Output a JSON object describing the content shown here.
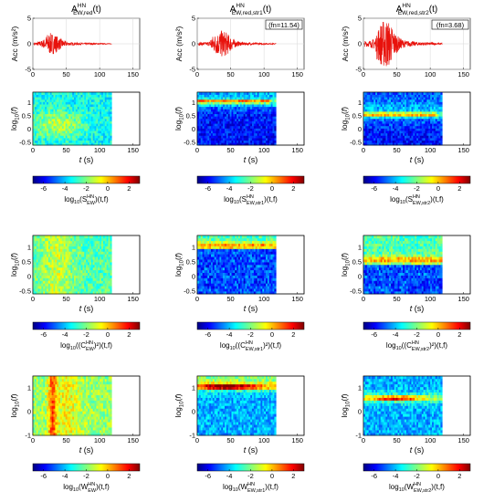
{
  "figure": {
    "time_axis_label": "t (s)",
    "acc_axis_label": "Acc (m/s²)",
    "freq_axis_label": "log10(f)"
  },
  "columns": [
    {
      "name": "EW,red",
      "acc_title": {
        "base": "A",
        "sup": "HN",
        "sub": "EW,red",
        "tail": "(t)"
      },
      "freq_badge": "",
      "spec_label": {
        "pre": "log",
        "pre_sub": "10",
        "open": "(S",
        "sup": "HN",
        "sub": "EW",
        "post": ")(t,f)"
      },
      "coh_label": {
        "pre": "log",
        "pre_sub": "10",
        "open": "((C",
        "sup": "HN",
        "sub": "EW",
        "post": ")²)(t,f)"
      },
      "wig_label": {
        "pre": "log",
        "pre_sub": "10",
        "open": "(W",
        "sup": "HN",
        "sub": "EW",
        "post": ")(t,f)"
      }
    },
    {
      "name": "EW,red,str1",
      "acc_title": {
        "base": "A",
        "sup": "HN",
        "sub": "EW,red,str1",
        "tail": "(t)"
      },
      "freq_badge": "(fn=11.54)",
      "spec_label": {
        "pre": "log",
        "pre_sub": "10",
        "open": "(S",
        "sup": "HN",
        "sub": "EW,str1",
        "post": ")(t,f)"
      },
      "coh_label": {
        "pre": "log",
        "pre_sub": "10",
        "open": "((C",
        "sup": "HN",
        "sub": "EW,str1",
        "post": ")²)(t,f)"
      },
      "wig_label": {
        "pre": "log",
        "pre_sub": "10",
        "open": "(W",
        "sup": "HN",
        "sub": "EW,str1",
        "post": ")(t,f)"
      }
    },
    {
      "name": "EW,red,str2",
      "acc_title": {
        "base": "A",
        "sup": "HN",
        "sub": "EW,red,str2",
        "tail": "(t)"
      },
      "freq_badge": "(fn=3.68)",
      "spec_label": {
        "pre": "log",
        "pre_sub": "10",
        "open": "(S",
        "sup": "HN",
        "sub": "EW,str2",
        "post": ")(t,f)"
      },
      "coh_label": {
        "pre": "log",
        "pre_sub": "10",
        "open": "((C",
        "sup": "HN",
        "sub": "EW,str2",
        "post": ")²)(t,f)"
      },
      "wig_label": {
        "pre": "log",
        "pre_sub": "10",
        "open": "(W",
        "sup": "HN",
        "sub": "EW,str2",
        "post": ")(t,f)"
      }
    }
  ],
  "chart_data": [
    {
      "type": "line",
      "description_role": "acceleration time histories",
      "xlim": [
        0,
        160
      ],
      "ylim": [
        -5,
        5
      ],
      "xticks": [
        0,
        50,
        100,
        150
      ],
      "yticks": [
        -5,
        0,
        5
      ],
      "grid": true,
      "color": "#e8120c",
      "signal_end": 118,
      "series": [
        {
          "name": "EW,red",
          "peak": 1.5,
          "peak_time": 28
        },
        {
          "name": "EW,red,str1",
          "peak": 2.0,
          "peak_time": 38
        },
        {
          "name": "EW,red,str2",
          "peak": 3.6,
          "peak_time": 34
        }
      ]
    },
    {
      "type": "heatmap",
      "description_role": "time-frequency panels (spectrogram, coherence, Wigner)",
      "xlim": [
        0,
        160
      ],
      "xticks": [
        0,
        50,
        100,
        150
      ],
      "signal_end": 118,
      "rows": [
        {
          "kind": "spectrogram",
          "ylim": [
            -0.6,
            1.4
          ],
          "yticks": [
            1,
            0.5,
            0,
            -0.5
          ]
        },
        {
          "kind": "coherence",
          "ylim": [
            -0.6,
            1.4
          ],
          "yticks": [
            1,
            0.5,
            0,
            -0.5
          ]
        },
        {
          "kind": "wigner",
          "ylim": [
            -1,
            1.5
          ],
          "yticks": [
            1,
            0,
            -1
          ]
        }
      ],
      "colorbar": {
        "range": [
          -7,
          3
        ],
        "ticks": [
          -6,
          -4,
          -2,
          0,
          2
        ],
        "colormap": "jet"
      },
      "dominant_log10f": [
        null,
        1.06,
        0.57
      ]
    }
  ]
}
